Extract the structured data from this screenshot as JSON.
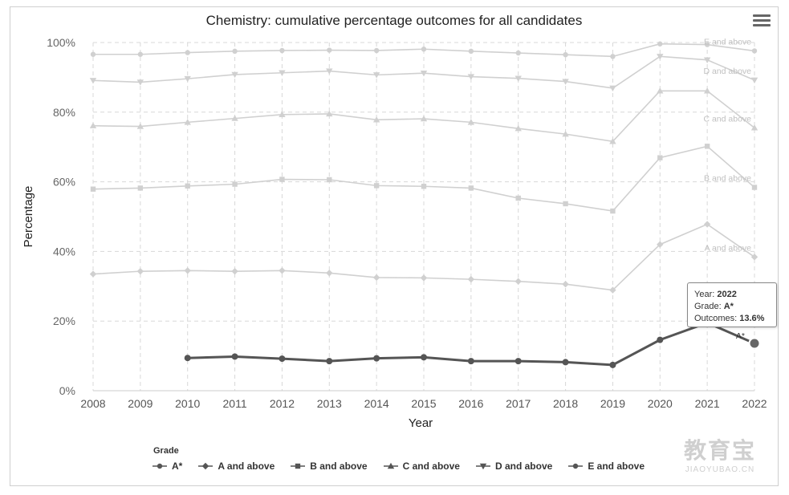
{
  "chart_data": {
    "type": "line",
    "title": "Chemistry: cumulative percentage outcomes for all candidates",
    "xlabel": "Year",
    "ylabel": "Percentage",
    "x": [
      2008,
      2009,
      2010,
      2011,
      2012,
      2013,
      2014,
      2015,
      2016,
      2017,
      2018,
      2019,
      2020,
      2021,
      2022
    ],
    "x_tick_labels": [
      "2008",
      "2009",
      "2010",
      "2011",
      "2012",
      "2013",
      "2014",
      "2015",
      "2016",
      "2017",
      "2018",
      "2019",
      "2020",
      "2021",
      "2022"
    ],
    "ylim": [
      0,
      100
    ],
    "y_tick_labels": [
      "0%",
      "20%",
      "40%",
      "60%",
      "80%",
      "100%"
    ],
    "y_ticks": [
      0,
      20,
      40,
      60,
      80,
      100
    ],
    "grid": true,
    "legend_title": "Grade",
    "legend_position": "bottom",
    "series": [
      {
        "name": "A*",
        "label": "A*",
        "highlighted": true,
        "marker": "circle",
        "values": [
          null,
          null,
          9.4,
          9.8,
          9.2,
          8.5,
          9.3,
          9.6,
          8.5,
          8.5,
          8.2,
          7.4,
          14.6,
          19.5,
          13.6
        ]
      },
      {
        "name": "A and above",
        "label": "A and above",
        "marker": "diamond",
        "values": [
          33.5,
          34.3,
          34.5,
          34.3,
          34.5,
          33.8,
          32.5,
          32.4,
          32.0,
          31.4,
          30.6,
          28.9,
          42.0,
          47.8,
          38.4
        ]
      },
      {
        "name": "B and above",
        "label": "B and above",
        "marker": "square",
        "values": [
          57.9,
          58.2,
          58.8,
          59.3,
          60.7,
          60.6,
          58.9,
          58.7,
          58.2,
          55.3,
          53.7,
          51.6,
          66.9,
          70.2,
          58.4
        ]
      },
      {
        "name": "C and above",
        "label": "C and above",
        "marker": "triangle",
        "values": [
          76.1,
          75.9,
          77.1,
          78.2,
          79.3,
          79.5,
          77.8,
          78.1,
          77.1,
          75.3,
          73.7,
          71.6,
          86.1,
          86.1,
          75.5
        ]
      },
      {
        "name": "D and above",
        "label": "D and above",
        "marker": "triangle-down",
        "values": [
          89.1,
          88.6,
          89.6,
          90.8,
          91.3,
          91.8,
          90.7,
          91.2,
          90.2,
          89.7,
          88.8,
          86.9,
          96.0,
          95.0,
          89.2
        ]
      },
      {
        "name": "E and above",
        "label": "E and above",
        "marker": "circle",
        "values": [
          96.6,
          96.6,
          97.1,
          97.5,
          97.7,
          97.8,
          97.7,
          98.1,
          97.5,
          97.0,
          96.5,
          96.0,
          99.6,
          99.4,
          97.6
        ]
      }
    ],
    "tooltip": {
      "year_label": "Year: ",
      "year_value": "2022",
      "grade_label": "Grade: ",
      "grade_value": "A*",
      "outcome_label": "Outcomes: ",
      "outcome_value": "13.6%",
      "point_label": "A*"
    }
  },
  "watermark": {
    "main": "教育宝",
    "sub": "JIAOYUBAO.CN"
  },
  "colors": {
    "highlight": "#555555",
    "faded": "#d0d0d0",
    "grid": "#d8d8d8",
    "label": "#c0c0c0"
  }
}
